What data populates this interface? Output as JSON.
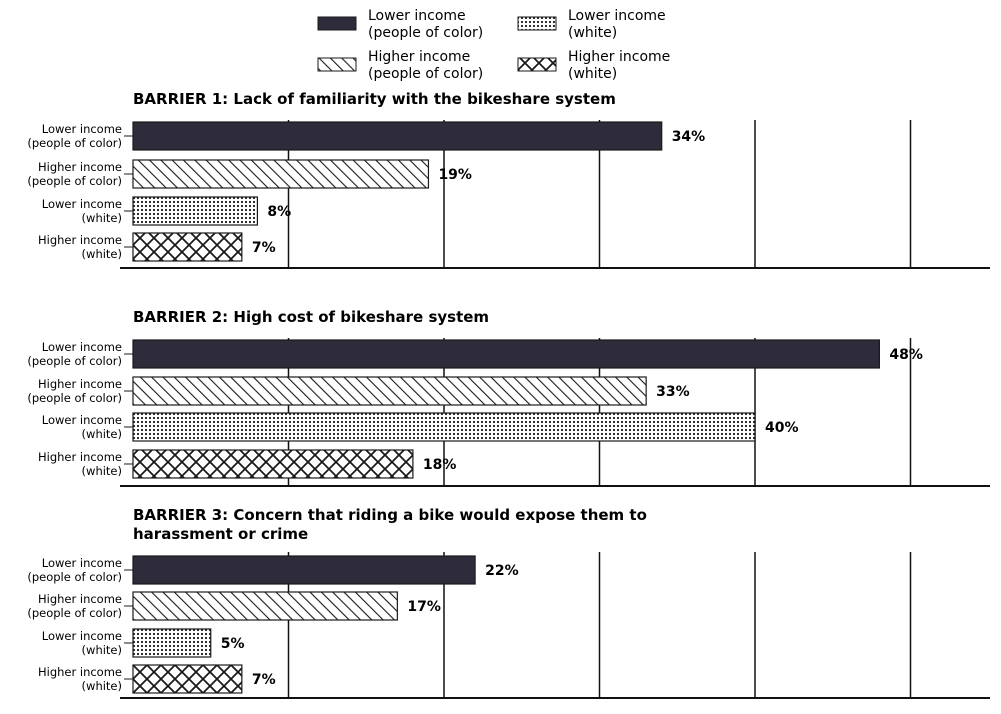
{
  "legend": [
    {
      "label_line1": "Lower income",
      "label_line2": "(people of color)",
      "pattern": "solid"
    },
    {
      "label_line1": "Lower income",
      "label_line2": "(white)",
      "pattern": "dots"
    },
    {
      "label_line1": "Higher income",
      "label_line2": "(people of color)",
      "pattern": "diagonal"
    },
    {
      "label_line1": "Higher income",
      "label_line2": "(white)",
      "pattern": "crosshatch"
    }
  ],
  "colors": {
    "solid_fill": "#2e2b3b",
    "stroke": "#1a1a1a",
    "grid": "#111111"
  },
  "chart_data": [
    {
      "type": "bar",
      "orientation": "horizontal",
      "title": "BARRIER 1: Lack of familiarity with the bikeshare system",
      "categories": [
        {
          "line1": "Lower income",
          "line2": "(people of color)"
        },
        {
          "line1": "Higher income",
          "line2": "(people of color)"
        },
        {
          "line1": "Lower income",
          "line2": "(white)"
        },
        {
          "line1": "Higher income",
          "line2": "(white)"
        }
      ],
      "values": [
        34,
        19,
        8,
        7
      ],
      "labels": [
        "34%",
        "19%",
        "8%",
        "7%"
      ],
      "patterns": [
        "solid",
        "diagonal",
        "dots",
        "crosshatch"
      ],
      "xlim": [
        0,
        50
      ],
      "grid": true
    },
    {
      "type": "bar",
      "orientation": "horizontal",
      "title": "BARRIER 2: High cost of bikeshare system",
      "categories": [
        {
          "line1": "Lower income",
          "line2": "(people of color)"
        },
        {
          "line1": "Higher income",
          "line2": "(people of color)"
        },
        {
          "line1": "Lower income",
          "line2": "(white)"
        },
        {
          "line1": "Higher income",
          "line2": "(white)"
        }
      ],
      "values": [
        48,
        33,
        40,
        18
      ],
      "labels": [
        "48%",
        "33%",
        "40%",
        "18%"
      ],
      "patterns": [
        "solid",
        "diagonal",
        "dots",
        "crosshatch"
      ],
      "xlim": [
        0,
        50
      ],
      "grid": true
    },
    {
      "type": "bar",
      "orientation": "horizontal",
      "title": "BARRIER 3: Concern that riding a bike would expose them to harassment or crime",
      "title_line1": "BARRIER 3: Concern that riding a bike would expose them to",
      "title_line2": "harassment or crime",
      "categories": [
        {
          "line1": "Lower income",
          "line2": "(people of color)"
        },
        {
          "line1": "Higher income",
          "line2": "(people of color)"
        },
        {
          "line1": "Lower income",
          "line2": "(white)"
        },
        {
          "line1": "Higher income",
          "line2": "(white)"
        }
      ],
      "values": [
        22,
        17,
        5,
        7
      ],
      "labels": [
        "22%",
        "17%",
        "5%",
        "7%"
      ],
      "patterns": [
        "solid",
        "diagonal",
        "dots",
        "crosshatch"
      ],
      "xlim": [
        0,
        50
      ],
      "grid": true
    }
  ]
}
